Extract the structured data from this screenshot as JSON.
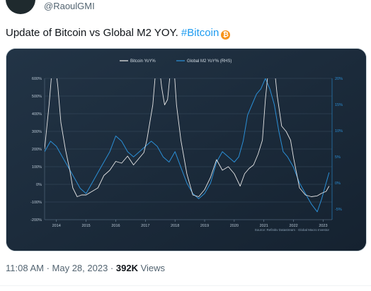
{
  "user": {
    "handle": "@RaoulGMI"
  },
  "tweet": {
    "text": "Update of Bitcoin vs Global M2 YOY. ",
    "hashtag": "#Bitcoin",
    "emoji_icon": "bitcoin-icon",
    "emoji_glyph": "₿"
  },
  "meta": {
    "time": "11:08 AM",
    "sep1": " · ",
    "date": "May 28, 2023",
    "sep2": " · ",
    "views_count": "392K",
    "views_label": " Views"
  },
  "chart_data": {
    "type": "line",
    "source": "Source: Refinitiv Datastream · Global Macro Investor",
    "x_ticks": [
      "2014",
      "2015",
      "2016",
      "2017",
      "2018",
      "2019",
      "2020",
      "2021",
      "2022",
      "2023"
    ],
    "xlim": [
      2013.6,
      2023.3
    ],
    "y_left": {
      "ticks": [
        "600%",
        "500%",
        "400%",
        "300%",
        "200%",
        "100%",
        "0%",
        "-100%",
        "-200%"
      ],
      "ylim": [
        -200,
        600
      ]
    },
    "y_right": {
      "ticks": [
        "20%",
        "15%",
        "10%",
        "5%",
        "0%",
        "-5%"
      ],
      "ylim": [
        -7,
        20
      ]
    },
    "grid": true,
    "legend_position": "top-center",
    "series": [
      {
        "name": "Bitcoin YoY%",
        "axis": "left",
        "color": "#e6e6e6",
        "x": [
          2013.6,
          2013.75,
          2013.85,
          2013.95,
          2014.05,
          2014.15,
          2014.3,
          2014.45,
          2014.55,
          2014.7,
          2014.85,
          2015.0,
          2015.2,
          2015.4,
          2015.6,
          2015.8,
          2016.0,
          2016.2,
          2016.4,
          2016.6,
          2016.8,
          2016.95,
          2017.05,
          2017.15,
          2017.25,
          2017.35,
          2017.45,
          2017.55,
          2017.65,
          2017.75,
          2017.85,
          2017.95,
          2018.05,
          2018.2,
          2018.4,
          2018.6,
          2018.8,
          2019.0,
          2019.2,
          2019.4,
          2019.6,
          2019.8,
          2020.0,
          2020.2,
          2020.35,
          2020.5,
          2020.65,
          2020.8,
          2020.95,
          2021.05,
          2021.15,
          2021.3,
          2021.45,
          2021.6,
          2021.75,
          2021.9,
          2022.0,
          2022.2,
          2022.4,
          2022.6,
          2022.8,
          2022.95,
          2023.1,
          2023.2
        ],
        "y": [
          200,
          450,
          650,
          700,
          550,
          350,
          200,
          80,
          -20,
          -70,
          -60,
          -60,
          -40,
          -20,
          50,
          80,
          130,
          120,
          160,
          110,
          150,
          180,
          250,
          350,
          450,
          650,
          700,
          550,
          450,
          480,
          650,
          700,
          450,
          250,
          60,
          -60,
          -70,
          -30,
          40,
          140,
          80,
          100,
          60,
          -10,
          60,
          90,
          110,
          170,
          250,
          480,
          650,
          750,
          500,
          330,
          300,
          250,
          150,
          -20,
          -60,
          -70,
          -65,
          -50,
          -40,
          -10
        ]
      },
      {
        "name": "Global M2 YoY% (RHS)",
        "axis": "right",
        "color": "#2b8fd6",
        "x": [
          2013.6,
          2013.8,
          2014.0,
          2014.2,
          2014.4,
          2014.6,
          2014.8,
          2015.0,
          2015.2,
          2015.4,
          2015.6,
          2015.8,
          2016.0,
          2016.2,
          2016.4,
          2016.6,
          2016.8,
          2017.0,
          2017.2,
          2017.4,
          2017.6,
          2017.8,
          2018.0,
          2018.2,
          2018.4,
          2018.6,
          2018.8,
          2019.0,
          2019.2,
          2019.4,
          2019.6,
          2019.8,
          2020.0,
          2020.15,
          2020.3,
          2020.45,
          2020.6,
          2020.75,
          2020.9,
          2021.05,
          2021.2,
          2021.35,
          2021.5,
          2021.65,
          2021.8,
          2022.0,
          2022.2,
          2022.4,
          2022.6,
          2022.8,
          2022.95,
          2023.1,
          2023.2
        ],
        "y": [
          6,
          8,
          7,
          5,
          3,
          1,
          -1,
          -2,
          0,
          2,
          4,
          6,
          9,
          8,
          6,
          5,
          6,
          7,
          8,
          7,
          5,
          4,
          6,
          3,
          0,
          -2,
          -3,
          -2,
          0,
          4,
          6,
          5,
          4,
          5,
          8,
          13,
          15,
          17,
          18,
          20,
          18,
          15,
          10,
          6,
          5,
          3,
          0,
          -2,
          -4,
          -5.5,
          -3,
          0,
          2
        ]
      }
    ]
  }
}
